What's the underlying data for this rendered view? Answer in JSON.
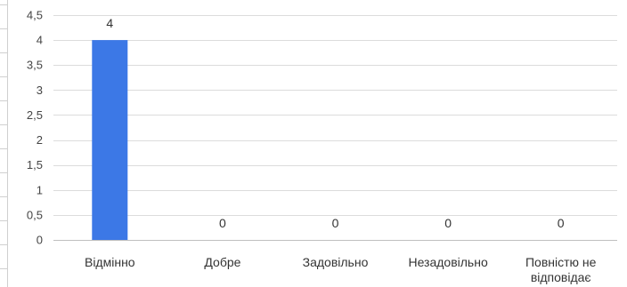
{
  "chart_data": {
    "type": "bar",
    "title": "",
    "xlabel": "",
    "ylabel": "",
    "categories": [
      [
        "Відмінно"
      ],
      [
        "Добре"
      ],
      [
        "Задовільно"
      ],
      [
        "Незадовільно"
      ],
      [
        "Повністю не",
        "відповідає"
      ]
    ],
    "values": [
      4,
      0,
      0,
      0,
      0
    ],
    "data_labels": [
      "4",
      "0",
      "0",
      "0",
      "0"
    ],
    "ylim": [
      0,
      4.5
    ],
    "yticks": [
      0,
      0.5,
      1,
      1.5,
      2,
      2.5,
      3,
      3.5,
      4,
      4.5
    ],
    "ytick_labels": [
      "0",
      "0,5",
      "1",
      "1,5",
      "2",
      "2,5",
      "3",
      "3,5",
      "4",
      "4,5"
    ],
    "grid": true,
    "legend": "none",
    "colors": {
      "bar": "#3c78e6",
      "grid": "#dcdcdc",
      "axis": "#bfbfbf",
      "frame": "#d0d0d0"
    }
  }
}
